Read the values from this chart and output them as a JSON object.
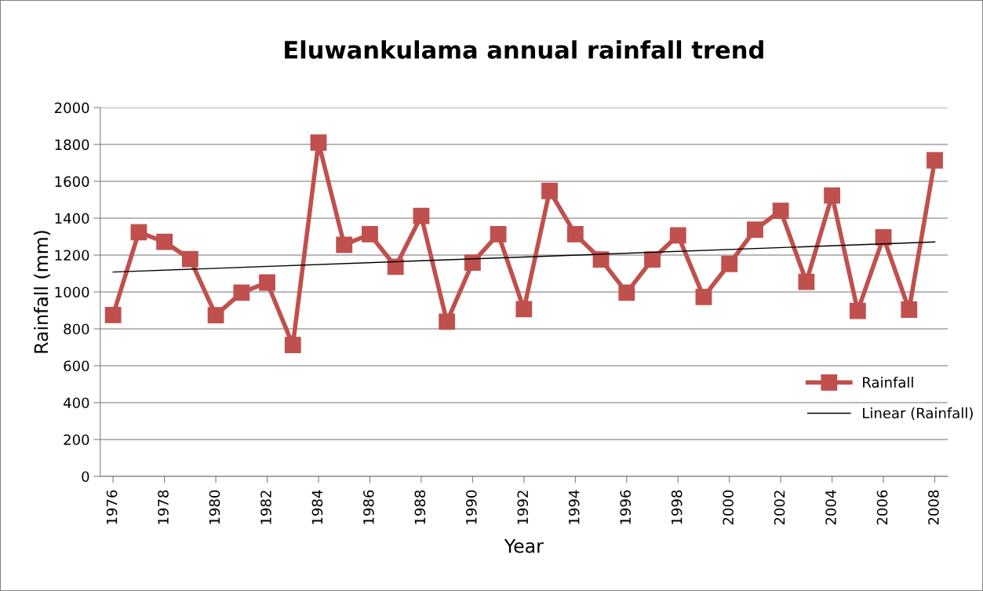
{
  "chart_data": {
    "type": "line",
    "title": "Eluwankulama annual rainfall trend",
    "xlabel": "Year",
    "ylabel": "Rainfall (mm)",
    "x": [
      1976,
      1977,
      1978,
      1979,
      1980,
      1981,
      1982,
      1983,
      1984,
      1985,
      1986,
      1987,
      1988,
      1989,
      1990,
      1991,
      1992,
      1993,
      1994,
      1995,
      1996,
      1997,
      1998,
      1999,
      2000,
      2001,
      2002,
      2003,
      2004,
      2005,
      2006,
      2007,
      2008
    ],
    "series": [
      {
        "name": "Rainfall",
        "color": "#c0504d",
        "marker": "square",
        "values": [
          875,
          1324,
          1272,
          1178,
          874,
          996,
          1051,
          712,
          1810,
          1256,
          1313,
          1137,
          1412,
          839,
          1159,
          1313,
          907,
          1548,
          1313,
          1176,
          996,
          1176,
          1307,
          973,
          1152,
          1338,
          1440,
          1055,
          1523,
          897,
          1296,
          904,
          1714
        ]
      },
      {
        "name": "Linear (Rainfall)",
        "color": "#000000",
        "marker": "none",
        "x": [
          1976,
          2008
        ],
        "values": [
          1108,
          1271
        ]
      }
    ],
    "xlim": [
      1975.5,
      2008.5
    ],
    "xticks": [
      1976,
      1978,
      1980,
      1982,
      1984,
      1986,
      1988,
      1990,
      1992,
      1994,
      1996,
      1998,
      2000,
      2002,
      2004,
      2006,
      2008
    ],
    "ylim": [
      0,
      2000
    ],
    "yticks": [
      0,
      200,
      400,
      600,
      800,
      1000,
      1200,
      1400,
      1600,
      1800,
      2000
    ],
    "grid": "y",
    "legend": "right",
    "line_style": "solid"
  }
}
